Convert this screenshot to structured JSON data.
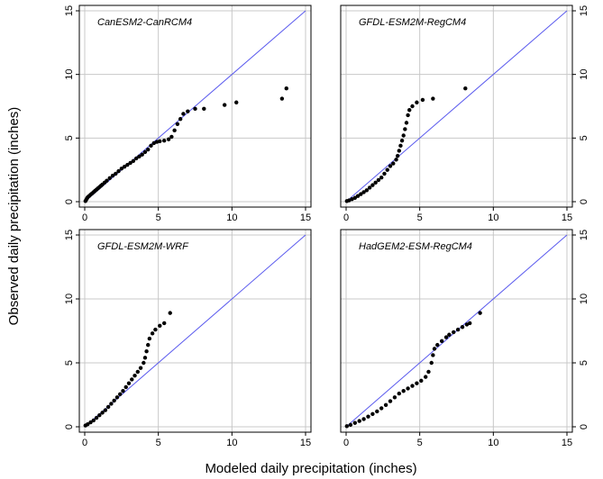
{
  "chart_data": {
    "type": "scatter",
    "xlabel": "Modeled daily precipitation (inches)",
    "ylabel": "Observed daily precipitation (inches)",
    "xlim": [
      0,
      15
    ],
    "ylim": [
      0,
      15
    ],
    "ticks": [
      "0",
      "5",
      "10",
      "15"
    ],
    "grid": true,
    "reference_line": "y = x",
    "colors": {
      "points": "#000000",
      "reference": "#5a5aee",
      "grid": "#c8c8c8"
    },
    "panels": [
      {
        "title": "CanESM2-CanRCM4",
        "points": [
          [
            0.05,
            0.05
          ],
          [
            0.1,
            0.15
          ],
          [
            0.15,
            0.25
          ],
          [
            0.2,
            0.35
          ],
          [
            0.3,
            0.45
          ],
          [
            0.4,
            0.55
          ],
          [
            0.5,
            0.65
          ],
          [
            0.6,
            0.75
          ],
          [
            0.7,
            0.85
          ],
          [
            0.8,
            0.95
          ],
          [
            0.9,
            1.05
          ],
          [
            1.0,
            1.15
          ],
          [
            1.1,
            1.25
          ],
          [
            1.2,
            1.35
          ],
          [
            1.35,
            1.5
          ],
          [
            1.5,
            1.65
          ],
          [
            1.7,
            1.85
          ],
          [
            1.9,
            2.05
          ],
          [
            2.1,
            2.2
          ],
          [
            2.3,
            2.4
          ],
          [
            2.5,
            2.6
          ],
          [
            2.7,
            2.75
          ],
          [
            2.9,
            2.9
          ],
          [
            3.1,
            3.05
          ],
          [
            3.3,
            3.2
          ],
          [
            3.5,
            3.4
          ],
          [
            3.7,
            3.55
          ],
          [
            3.9,
            3.7
          ],
          [
            4.1,
            3.9
          ],
          [
            4.3,
            4.1
          ],
          [
            4.5,
            4.4
          ],
          [
            4.7,
            4.6
          ],
          [
            4.9,
            4.7
          ],
          [
            5.1,
            4.75
          ],
          [
            5.4,
            4.8
          ],
          [
            5.7,
            4.9
          ],
          [
            5.9,
            5.1
          ],
          [
            6.1,
            5.6
          ],
          [
            6.3,
            6.1
          ],
          [
            6.5,
            6.5
          ],
          [
            6.7,
            6.9
          ],
          [
            7.0,
            7.1
          ],
          [
            7.5,
            7.3
          ],
          [
            8.1,
            7.3
          ],
          [
            9.5,
            7.6
          ],
          [
            10.3,
            7.8
          ],
          [
            13.4,
            8.1
          ],
          [
            13.7,
            8.9
          ]
        ]
      },
      {
        "title": "GFDL-ESM2M-RegCM4",
        "points": [
          [
            0.05,
            0.05
          ],
          [
            0.2,
            0.1
          ],
          [
            0.4,
            0.2
          ],
          [
            0.6,
            0.3
          ],
          [
            0.8,
            0.45
          ],
          [
            1.0,
            0.6
          ],
          [
            1.2,
            0.75
          ],
          [
            1.4,
            0.9
          ],
          [
            1.6,
            1.1
          ],
          [
            1.8,
            1.3
          ],
          [
            2.0,
            1.5
          ],
          [
            2.2,
            1.7
          ],
          [
            2.4,
            1.9
          ],
          [
            2.6,
            2.2
          ],
          [
            2.8,
            2.5
          ],
          [
            3.0,
            2.8
          ],
          [
            3.2,
            3.0
          ],
          [
            3.4,
            3.3
          ],
          [
            3.5,
            3.6
          ],
          [
            3.6,
            4.0
          ],
          [
            3.7,
            4.4
          ],
          [
            3.8,
            4.8
          ],
          [
            3.9,
            5.2
          ],
          [
            4.0,
            5.7
          ],
          [
            4.1,
            6.2
          ],
          [
            4.2,
            6.8
          ],
          [
            4.3,
            7.2
          ],
          [
            4.5,
            7.5
          ],
          [
            4.8,
            7.8
          ],
          [
            5.2,
            8.0
          ],
          [
            5.9,
            8.1
          ],
          [
            8.1,
            8.9
          ]
        ]
      },
      {
        "title": "GFDL-ESM2M-WRF",
        "points": [
          [
            0.05,
            0.1
          ],
          [
            0.2,
            0.2
          ],
          [
            0.4,
            0.35
          ],
          [
            0.6,
            0.5
          ],
          [
            0.8,
            0.7
          ],
          [
            1.0,
            0.9
          ],
          [
            1.2,
            1.1
          ],
          [
            1.4,
            1.3
          ],
          [
            1.6,
            1.55
          ],
          [
            1.8,
            1.8
          ],
          [
            2.0,
            2.05
          ],
          [
            2.2,
            2.3
          ],
          [
            2.4,
            2.55
          ],
          [
            2.6,
            2.8
          ],
          [
            2.8,
            3.1
          ],
          [
            3.0,
            3.4
          ],
          [
            3.2,
            3.7
          ],
          [
            3.4,
            4.0
          ],
          [
            3.6,
            4.3
          ],
          [
            3.8,
            4.6
          ],
          [
            4.0,
            5.0
          ],
          [
            4.1,
            5.4
          ],
          [
            4.2,
            5.9
          ],
          [
            4.3,
            6.4
          ],
          [
            4.4,
            6.9
          ],
          [
            4.6,
            7.3
          ],
          [
            4.8,
            7.6
          ],
          [
            5.1,
            7.9
          ],
          [
            5.4,
            8.1
          ],
          [
            5.8,
            8.9
          ]
        ]
      },
      {
        "title": "HadGEM2-ESM-RegCM4",
        "points": [
          [
            0.05,
            0.05
          ],
          [
            0.3,
            0.15
          ],
          [
            0.6,
            0.3
          ],
          [
            0.9,
            0.45
          ],
          [
            1.2,
            0.6
          ],
          [
            1.5,
            0.8
          ],
          [
            1.8,
            1.0
          ],
          [
            2.1,
            1.2
          ],
          [
            2.4,
            1.45
          ],
          [
            2.7,
            1.7
          ],
          [
            3.0,
            2.0
          ],
          [
            3.3,
            2.3
          ],
          [
            3.6,
            2.6
          ],
          [
            3.9,
            2.8
          ],
          [
            4.2,
            3.0
          ],
          [
            4.5,
            3.2
          ],
          [
            4.8,
            3.4
          ],
          [
            5.1,
            3.6
          ],
          [
            5.4,
            3.9
          ],
          [
            5.6,
            4.3
          ],
          [
            5.8,
            5.0
          ],
          [
            5.9,
            5.6
          ],
          [
            6.0,
            6.1
          ],
          [
            6.2,
            6.4
          ],
          [
            6.5,
            6.7
          ],
          [
            6.8,
            7.0
          ],
          [
            7.0,
            7.2
          ],
          [
            7.3,
            7.4
          ],
          [
            7.6,
            7.6
          ],
          [
            7.9,
            7.8
          ],
          [
            8.2,
            8.0
          ],
          [
            8.4,
            8.1
          ],
          [
            9.1,
            8.9
          ]
        ]
      }
    ]
  }
}
